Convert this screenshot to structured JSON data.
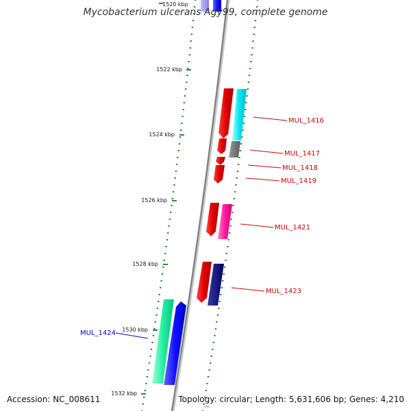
{
  "title": "Mycobacterium ulcerans Agy99, complete genome",
  "footer": {
    "accession": "Accession: NC_008611",
    "topology": "Topology: circular; Length: 5,631,606 bp; Genes: 4,210"
  },
  "colors": {
    "backbone": "#8c8c8c",
    "tick": "#2e8b2e",
    "label_red": "#cc0000",
    "label_blue": "#0000cc"
  },
  "kbp_ticks": [
    "1520 kbp",
    "1522 kbp",
    "1524 kbp",
    "1526 kbp",
    "1528 kbp",
    "1530 kbp",
    "1532 kbp"
  ],
  "gene_labels": [
    "MUL_1416",
    "MUL_1417",
    "MUL_1418",
    "MUL_1419",
    "MUL_1421",
    "MUL_1423",
    "MUL_1424"
  ]
}
